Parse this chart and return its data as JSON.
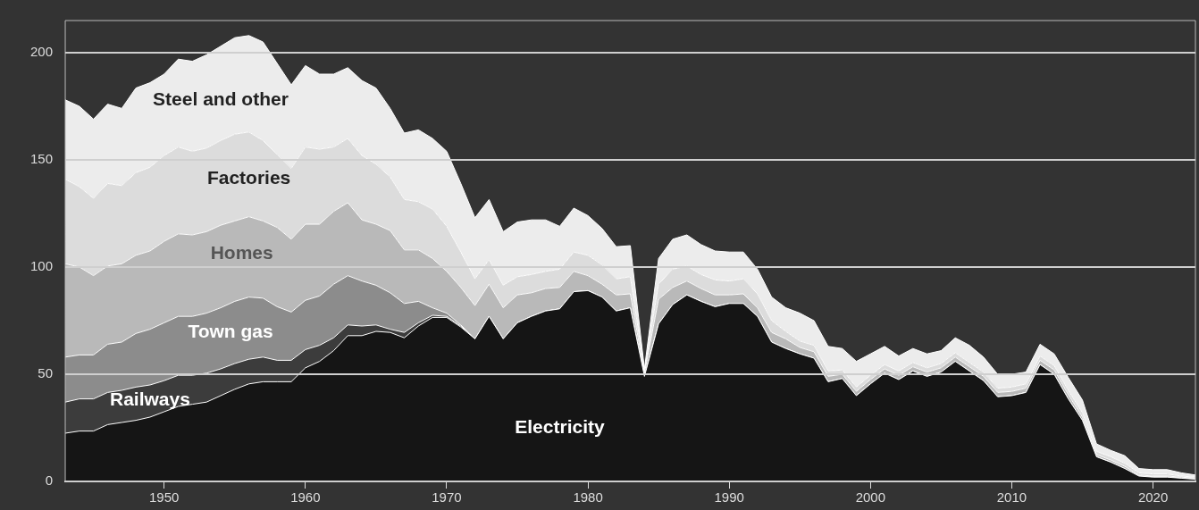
{
  "chart_data": {
    "type": "area",
    "stacked": true,
    "grid": "y",
    "legend": false,
    "marker": "none",
    "x": [
      1943,
      1944,
      1945,
      1946,
      1947,
      1948,
      1949,
      1950,
      1951,
      1952,
      1953,
      1954,
      1955,
      1956,
      1957,
      1958,
      1959,
      1960,
      1961,
      1962,
      1963,
      1964,
      1965,
      1966,
      1967,
      1968,
      1969,
      1970,
      1971,
      1972,
      1973,
      1974,
      1975,
      1976,
      1977,
      1978,
      1979,
      1980,
      1981,
      1982,
      1983,
      1984,
      1985,
      1986,
      1987,
      1988,
      1989,
      1990,
      1991,
      1992,
      1993,
      1994,
      1995,
      1996,
      1997,
      1998,
      1999,
      2000,
      2001,
      2002,
      2003,
      2004,
      2005,
      2006,
      2007,
      2008,
      2009,
      2010,
      2011,
      2012,
      2013,
      2014,
      2015,
      2016,
      2017,
      2018,
      2019,
      2020,
      2021,
      2022,
      2023
    ],
    "xlim": [
      1943,
      2023
    ],
    "xticks": [
      1950,
      1960,
      1970,
      1980,
      1990,
      2000,
      2010,
      2020
    ],
    "ylim": [
      0,
      215
    ],
    "yticks": [
      0,
      50,
      100,
      150,
      200
    ],
    "series": [
      {
        "name": "Electricity",
        "color": "#151515",
        "values": [
          22.5,
          23.5,
          23.5,
          26.5,
          27.5,
          28.5,
          30,
          32.5,
          35,
          36,
          37,
          40,
          43,
          45.5,
          46.5,
          46.5,
          46.5,
          53,
          56,
          61,
          68,
          68,
          70,
          69.5,
          67,
          72.5,
          76.5,
          76.5,
          72,
          66.5,
          77,
          66.5,
          74,
          77,
          79.5,
          80.5,
          88.5,
          89,
          86,
          79.5,
          81,
          49,
          73.5,
          82.5,
          87,
          84,
          81.5,
          83,
          83,
          77,
          65,
          62,
          59.5,
          57.5,
          46.5,
          48,
          40,
          45.5,
          50.5,
          47.5,
          51.5,
          49,
          51,
          56,
          51.5,
          47,
          39.5,
          40,
          41.5,
          54.5,
          50,
          38.5,
          28.5,
          11.5,
          9,
          6,
          2.5,
          2,
          2,
          1.5,
          1
        ]
      },
      {
        "name": "Railways",
        "color": "#3c3c3c",
        "values": [
          14.5,
          15,
          15,
          15,
          15,
          15.5,
          15,
          14.5,
          14.5,
          13.5,
          13.5,
          12.5,
          12,
          11.5,
          11.5,
          10,
          10,
          8.5,
          7.5,
          6,
          5,
          4.5,
          3,
          1.5,
          2.5,
          1.5,
          1,
          0.5,
          0.5,
          0,
          0,
          0,
          0,
          0,
          0,
          0,
          0,
          0,
          0,
          0,
          0,
          0,
          0,
          0,
          0,
          0,
          0,
          0,
          0,
          0,
          0,
          0,
          0,
          0,
          0,
          0,
          0,
          0,
          0,
          0,
          0,
          0,
          0,
          0,
          0,
          0,
          0,
          0,
          0,
          0,
          0,
          0,
          0,
          0,
          0,
          0,
          0,
          0,
          0,
          0,
          0
        ]
      },
      {
        "name": "Town gas",
        "color": "#8c8c8c",
        "values": [
          21,
          20.5,
          20.5,
          22.5,
          22.5,
          25,
          26,
          27,
          27.5,
          27.5,
          28,
          28.5,
          29,
          29,
          27.5,
          25,
          22.5,
          23,
          23,
          25,
          23,
          21,
          18.5,
          17,
          13.5,
          10,
          3.5,
          1.5,
          0.5,
          0,
          0,
          0,
          0,
          0,
          0,
          0,
          0,
          0,
          0,
          0,
          0,
          0,
          0,
          0,
          0,
          0,
          0,
          0,
          0,
          0,
          0,
          0,
          0,
          0,
          0,
          0,
          0,
          0,
          0,
          0,
          0,
          0,
          0,
          0,
          0,
          0,
          0,
          0,
          0,
          0,
          0,
          0,
          0,
          0,
          0,
          0,
          0,
          0,
          0,
          0,
          0
        ]
      },
      {
        "name": "Homes",
        "color": "#b9b9b9",
        "values": [
          43.5,
          41,
          37,
          36.5,
          36.5,
          36.5,
          36.5,
          38,
          38.5,
          38,
          38,
          38.5,
          37.5,
          37.5,
          36,
          37,
          34,
          35.5,
          33.5,
          34,
          34,
          28.5,
          28.5,
          29,
          25,
          24,
          23,
          19.5,
          17.5,
          15.5,
          15,
          14.5,
          13,
          11,
          10.5,
          10,
          9.5,
          7,
          6,
          7.5,
          6.5,
          1.5,
          11.5,
          8,
          6.5,
          6,
          5.5,
          4,
          4.5,
          4,
          4.5,
          4.5,
          3,
          3,
          2.5,
          2,
          2,
          2,
          2,
          2,
          2,
          2,
          2,
          2,
          2,
          2,
          2,
          2,
          2,
          2,
          2,
          2,
          1.5,
          1,
          1,
          1,
          0.5,
          0.5,
          0.5,
          0.5,
          0.5
        ]
      },
      {
        "name": "Factories",
        "color": "#dcdcdc",
        "values": [
          39.5,
          37.5,
          36,
          38.5,
          36.5,
          38.5,
          39,
          40,
          40.5,
          39,
          39,
          39.5,
          40.5,
          39.5,
          37.5,
          34,
          33,
          36,
          35,
          30,
          30,
          30,
          28,
          25,
          23.5,
          22.5,
          23,
          21,
          16.5,
          12.5,
          11.5,
          10.5,
          8.5,
          8.5,
          8,
          8.5,
          9,
          9.5,
          9,
          7.5,
          8,
          1,
          7,
          8.5,
          7,
          6.5,
          7,
          6.5,
          7,
          6.5,
          5.5,
          3.5,
          3,
          3,
          2.5,
          2,
          2,
          2,
          2,
          2,
          2,
          2,
          2,
          2,
          2,
          2,
          2,
          2,
          2,
          2,
          2,
          2,
          2,
          1.5,
          1.5,
          1.5,
          1,
          1,
          1,
          0.5,
          0.5
        ]
      },
      {
        "name": "Steel and other",
        "color": "#ececec",
        "values": [
          37,
          37.5,
          37,
          37,
          36,
          39.5,
          39.5,
          38,
          41,
          42,
          43.5,
          44,
          45,
          45,
          46,
          42.5,
          39,
          38,
          35,
          34,
          33,
          35,
          35.5,
          32,
          31,
          33.5,
          33,
          35,
          32,
          28.5,
          28,
          25,
          25.5,
          25.5,
          24,
          20,
          20.5,
          18.5,
          17,
          15,
          14.5,
          1,
          12,
          14,
          14.5,
          14,
          13.5,
          13.5,
          12.5,
          11.5,
          11,
          11,
          13,
          11.5,
          11.5,
          10,
          12,
          10,
          8.5,
          7,
          6.5,
          6.5,
          6,
          7,
          8,
          7,
          6.5,
          6,
          5.5,
          5.5,
          5.5,
          6,
          6,
          3.5,
          3,
          3.5,
          2,
          2,
          2,
          1.5,
          1
        ]
      }
    ]
  }
}
